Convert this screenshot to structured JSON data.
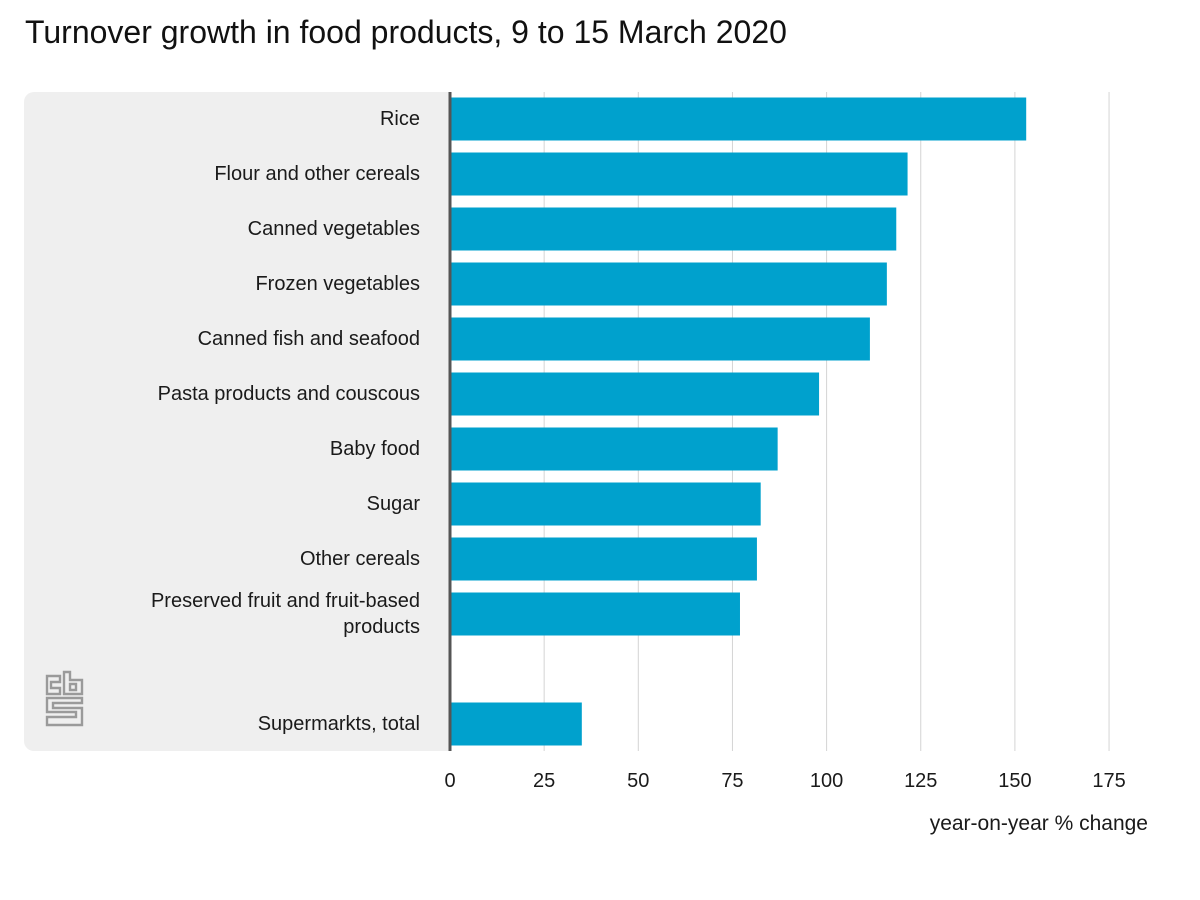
{
  "title": "Turnover growth in food products, 9 to 15 March 2020",
  "chart_data": {
    "type": "bar",
    "orientation": "horizontal",
    "title": "Turnover growth in food products, 9 to 15 March 2020",
    "xlabel": "year-on-year % change",
    "ylabel": "",
    "xlim": [
      0,
      175
    ],
    "xticks": [
      0,
      25,
      50,
      75,
      100,
      125,
      150,
      175
    ],
    "grid": true,
    "categories": [
      "Rice",
      "Flour and other cereals",
      "Canned vegetables",
      "Frozen vegetables",
      "Canned fish and seafood",
      "Pasta products and couscous",
      "Baby food",
      "Sugar",
      "Other cereals",
      "Preserved fruit and fruit-based products",
      "Supermarkts, total"
    ],
    "values": [
      153,
      121.5,
      118.5,
      116,
      111.5,
      98,
      87,
      82.5,
      81.5,
      77,
      35
    ],
    "bar_color": "#00a1cd"
  },
  "colors": {
    "bar": "#00a1cd",
    "panel": "#efefef",
    "axis": "#555555",
    "grid": "#d4d4d4",
    "logo": "#9a9a9a"
  },
  "logo_icon": "cbs-logo-icon"
}
